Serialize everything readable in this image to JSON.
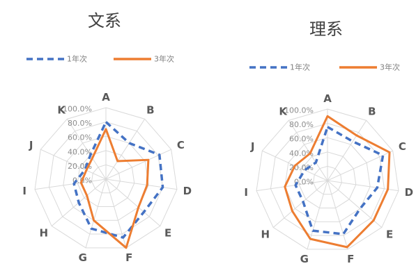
{
  "chart_data": [
    {
      "type": "radar",
      "title": "文系",
      "axes": [
        "A",
        "B",
        "C",
        "D",
        "E",
        "F",
        "G",
        "H",
        "I",
        "J",
        "K"
      ],
      "ticks": [
        0,
        20,
        40,
        60,
        80,
        100
      ],
      "tick_labels": [
        "0.0%",
        "20.0%",
        "40.0%",
        "60.0%",
        "80.0%",
        "100.0%"
      ],
      "rlim": [
        0,
        100
      ],
      "grid": true,
      "legend_position": "top",
      "series": [
        {
          "name": "1年次",
          "values": [
            80,
            60,
            82,
            80,
            70,
            85,
            72,
            50,
            45,
            32,
            40
          ],
          "color": "#4472C4",
          "line_style": "dashed"
        },
        {
          "name": "3年次",
          "values": [
            70,
            30,
            65,
            58,
            60,
            100,
            60,
            35,
            35,
            30,
            35
          ],
          "color": "#ED7D31",
          "line_style": "solid"
        }
      ]
    },
    {
      "type": "radar",
      "title": "理系",
      "axes": [
        "A",
        "B",
        "C",
        "D",
        "E",
        "F",
        "G",
        "H",
        "I",
        "J",
        "K"
      ],
      "ticks": [
        0,
        20,
        40,
        60,
        80,
        100
      ],
      "tick_labels": [
        "0.0%",
        "20.0%",
        "40.0%",
        "60.0%",
        "80.0%",
        "100.0%"
      ],
      "rlim": [
        0,
        100
      ],
      "grid": true,
      "legend_position": "top",
      "series": [
        {
          "name": "1年次",
          "values": [
            75,
            65,
            85,
            70,
            60,
            78,
            73,
            45,
            45,
            35,
            30
          ],
          "color": "#4472C4",
          "line_style": "dashed"
        },
        {
          "name": "3年次",
          "values": [
            90,
            75,
            95,
            85,
            85,
            97,
            85,
            65,
            60,
            50,
            45
          ],
          "color": "#ED7D31",
          "line_style": "solid"
        }
      ]
    }
  ]
}
